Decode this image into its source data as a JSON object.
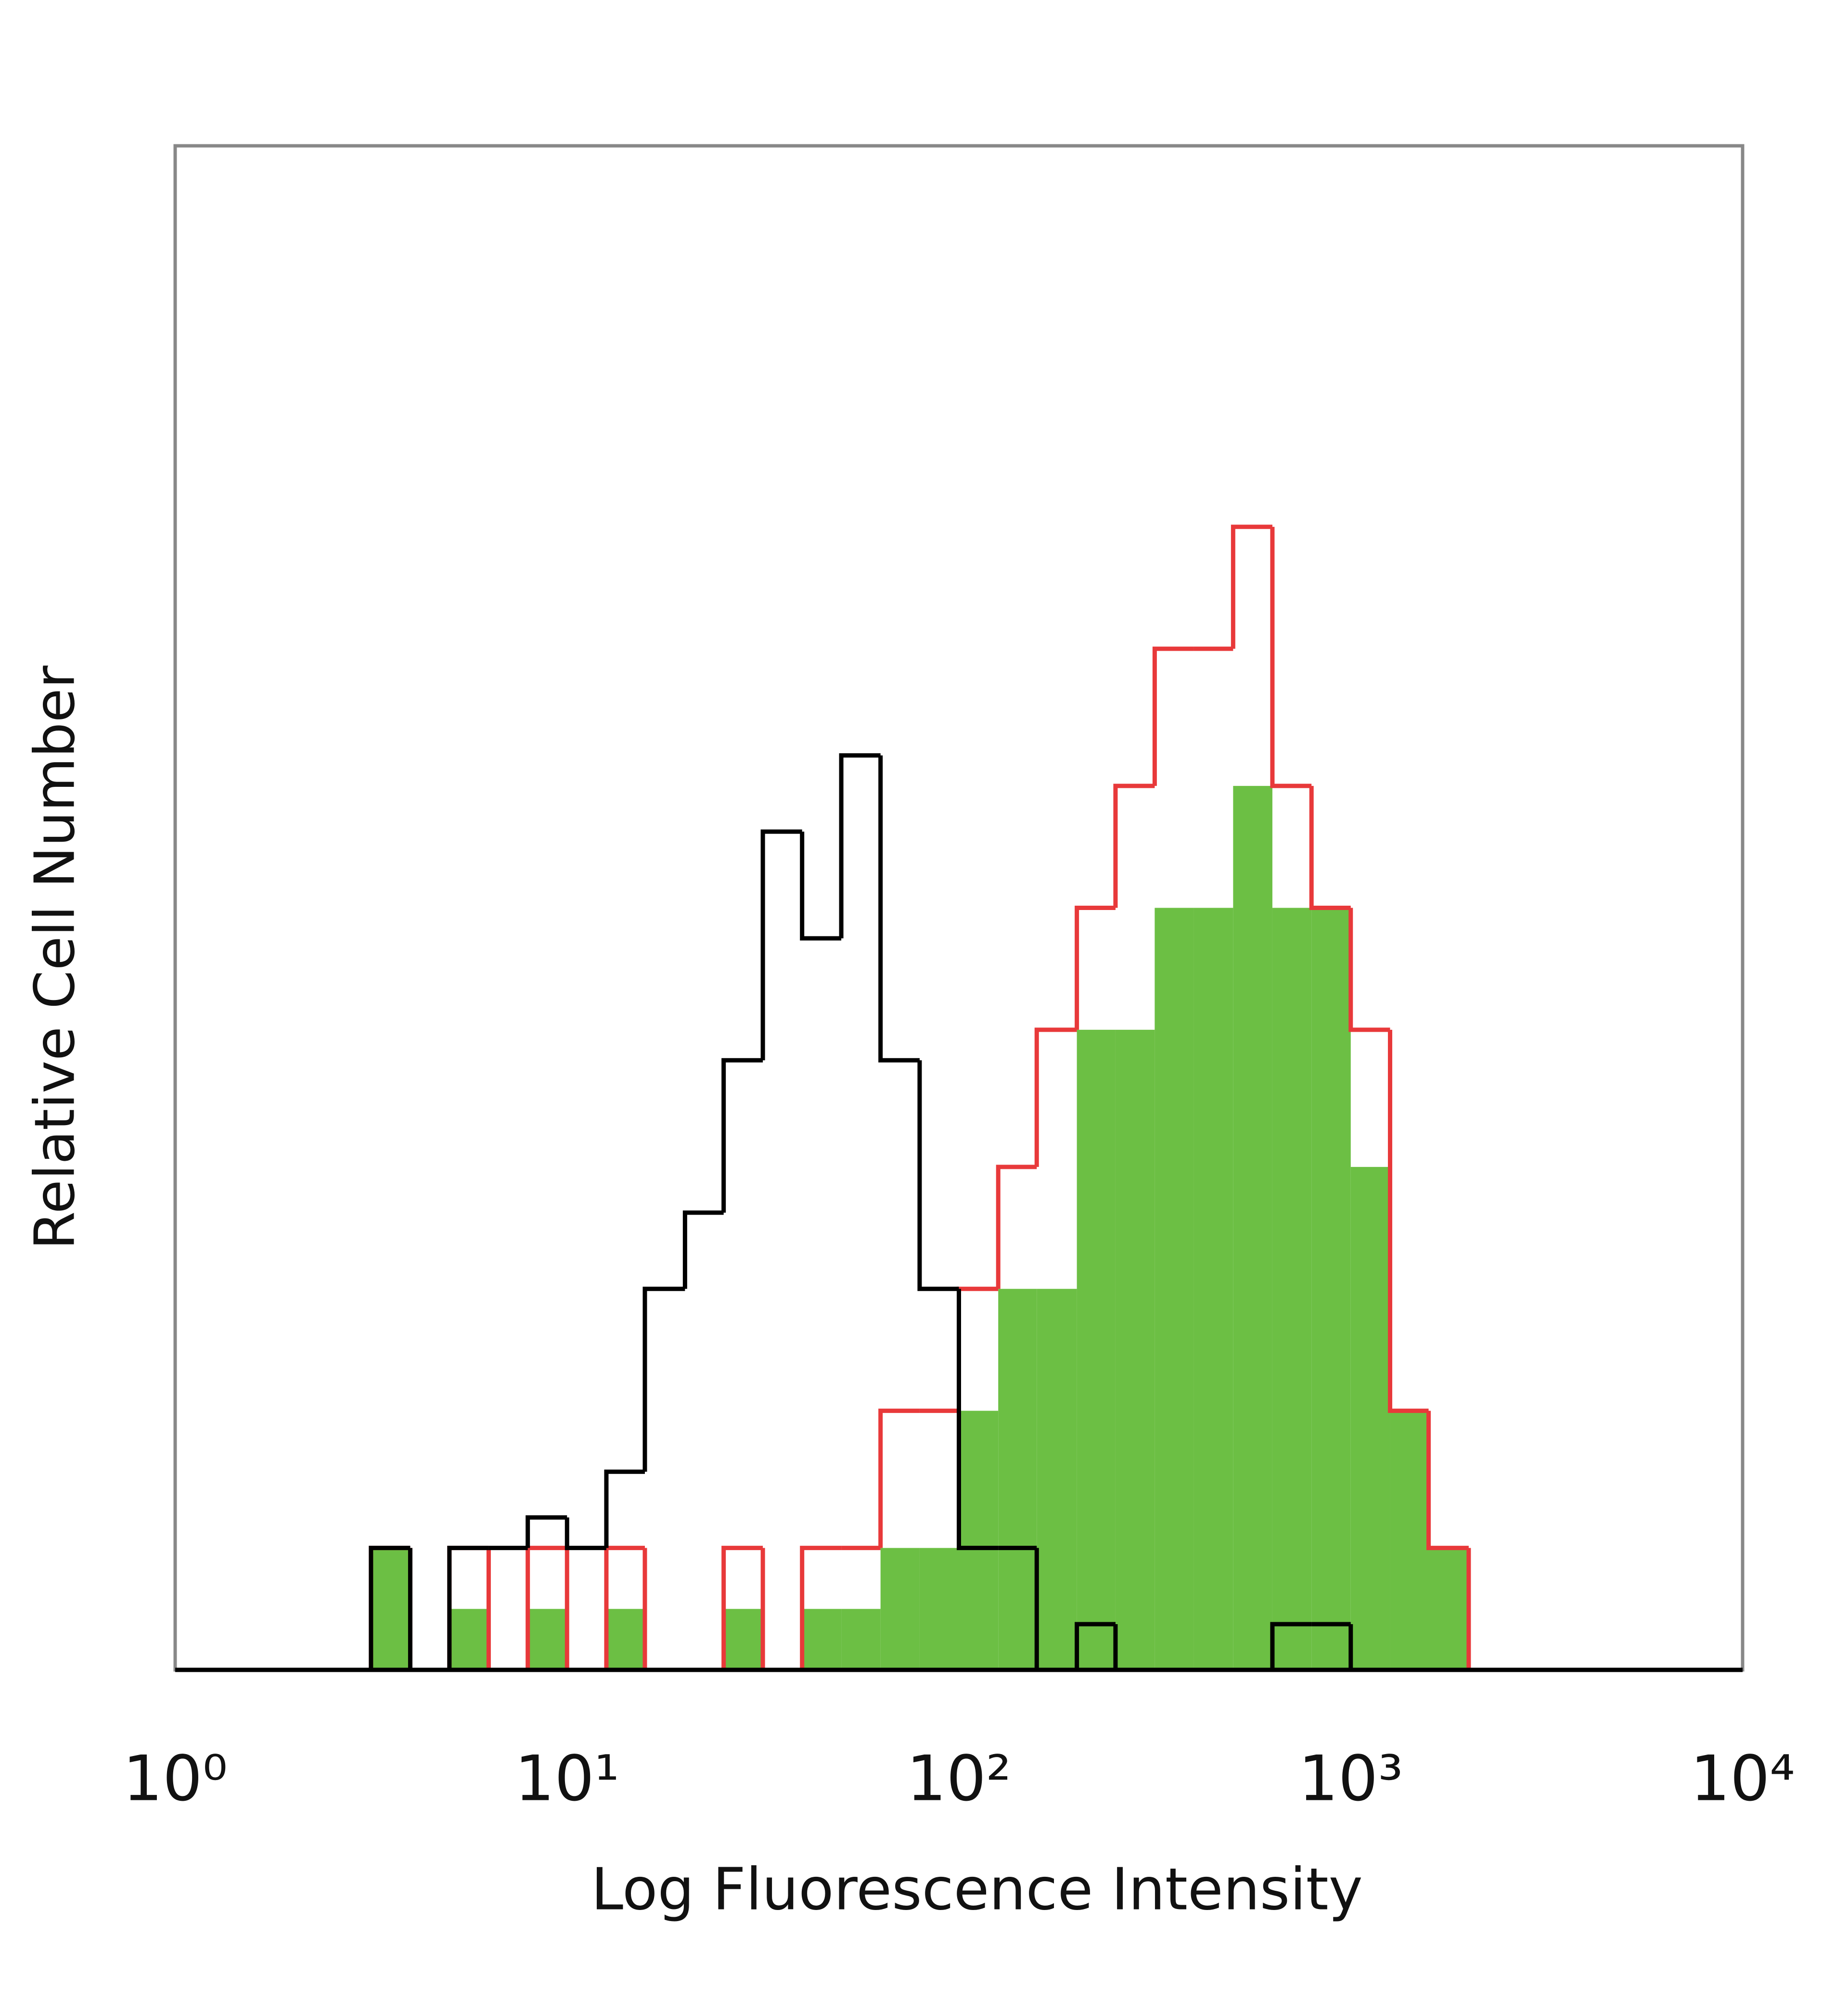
{
  "chart_data": {
    "type": "histogram",
    "xlabel": "Log Fluorescence Intensity",
    "ylabel": "Relative Cell Number",
    "xscale": "log",
    "xlim": [
      1,
      10000
    ],
    "ylim": [
      0,
      100
    ],
    "xticks": [
      {
        "value": 1,
        "label": "10⁰"
      },
      {
        "value": 10,
        "label": "10¹"
      },
      {
        "value": 100,
        "label": "10²"
      },
      {
        "value": 1000,
        "label": "10³"
      },
      {
        "value": 10000,
        "label": "10⁴"
      }
    ],
    "bins": [
      1,
      1.26,
      1.58,
      2,
      2.51,
      3.16,
      3.98,
      5.01,
      6.31,
      7.94,
      10,
      12.6,
      15.8,
      20,
      25.1,
      31.6,
      39.8,
      50.1,
      63.1,
      79.4,
      100,
      126,
      158,
      200,
      251,
      316,
      398,
      501,
      631,
      794,
      1000,
      1260,
      1580,
      2000,
      2510,
      3160,
      3980,
      5010,
      6310,
      7940,
      10000
    ],
    "series": [
      {
        "color": "#6cbf44",
        "fill": true,
        "values": [
          0,
          0,
          0,
          0,
          0,
          8,
          0,
          4,
          0,
          4,
          0,
          4,
          0,
          0,
          4,
          0,
          4,
          4,
          8,
          8,
          17,
          25,
          25,
          42,
          42,
          50,
          50,
          58,
          50,
          50,
          33,
          17,
          8,
          0,
          0,
          0,
          0,
          0,
          0,
          0
        ]
      },
      {
        "color": "#e8393a",
        "fill": false,
        "values": [
          0,
          0,
          0,
          0,
          0,
          8,
          0,
          8,
          0,
          8,
          0,
          8,
          0,
          0,
          8,
          0,
          8,
          8,
          17,
          17,
          25,
          33,
          42,
          50,
          58,
          67,
          67,
          75,
          58,
          50,
          42,
          17,
          8,
          0,
          0,
          0,
          0,
          0,
          0,
          0
        ]
      },
      {
        "color": "#000000",
        "fill": false,
        "values": [
          0,
          0,
          0,
          0,
          0,
          8,
          0,
          8,
          8,
          10,
          8,
          13,
          25,
          30,
          40,
          55,
          48,
          60,
          40,
          25,
          8,
          8,
          0,
          3,
          0,
          0,
          0,
          0,
          3,
          3,
          0,
          0,
          0,
          0,
          0,
          0,
          0,
          0,
          0,
          0
        ]
      }
    ]
  }
}
